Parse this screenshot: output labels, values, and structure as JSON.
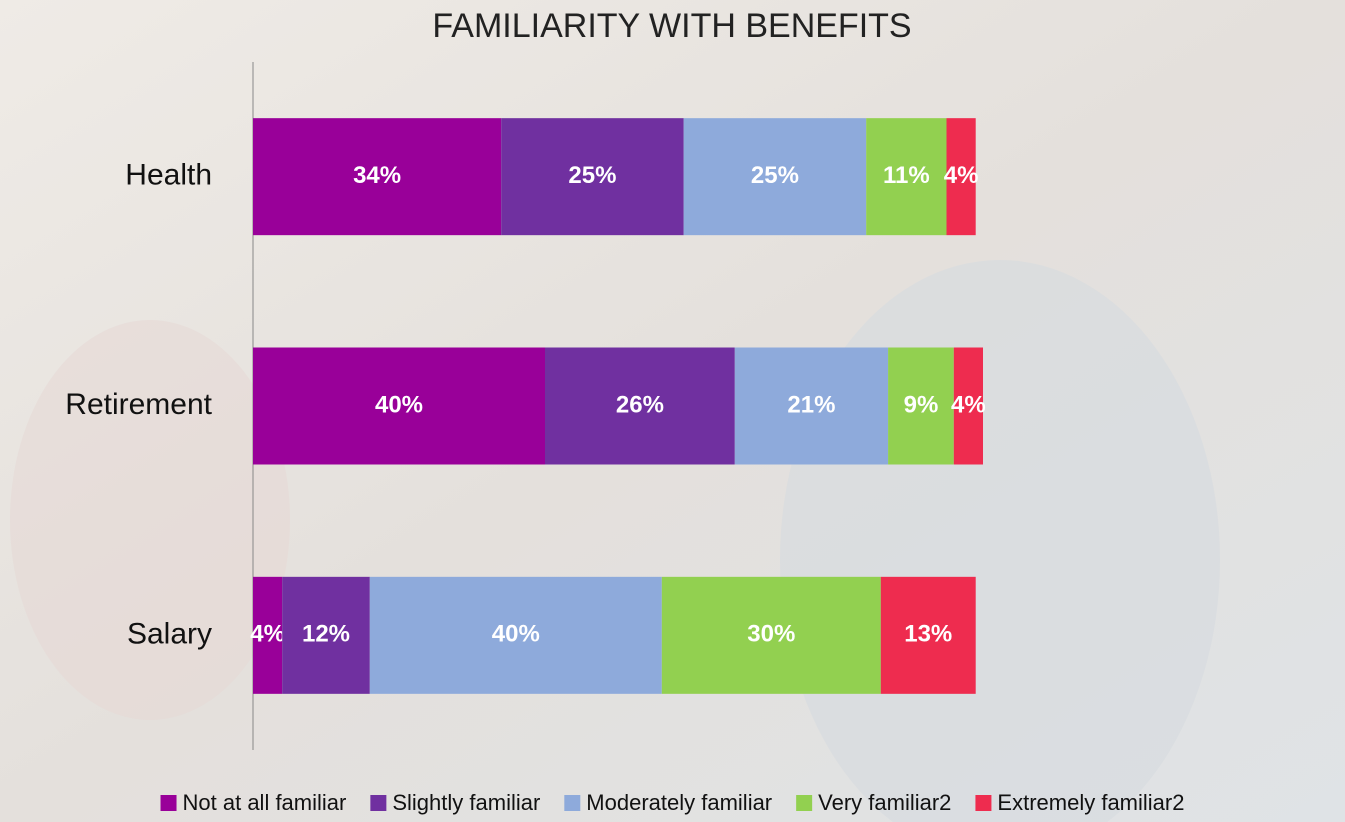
{
  "chart_data": {
    "type": "stacked-bar",
    "orientation": "horizontal",
    "title": "FAMILIARITY WITH BENEFITS",
    "categories": [
      "Health",
      "Retirement",
      "Salary"
    ],
    "series": [
      {
        "name": "Not at all familiar",
        "color": "#990099",
        "values": [
          34,
          40,
          4
        ],
        "value_labels": [
          "34%",
          "40%",
          "4%"
        ]
      },
      {
        "name": "Slightly familiar",
        "color": "#7030a0",
        "values": [
          25,
          26,
          12
        ],
        "value_labels": [
          "25%",
          "26%",
          "12%"
        ]
      },
      {
        "name": "Moderately familiar",
        "color": "#8eaadb",
        "values": [
          25,
          21,
          40
        ],
        "value_labels": [
          "25%",
          "21%",
          "40%"
        ]
      },
      {
        "name": "Very familiar2",
        "color": "#92d050",
        "values": [
          11,
          9,
          30
        ],
        "value_labels": [
          "11%",
          "9%",
          "30%"
        ]
      },
      {
        "name": "Extremely familiar2",
        "color": "#ee2c4f",
        "values": [
          4,
          4,
          13
        ],
        "value_labels": [
          "4%",
          "4%",
          "13%"
        ]
      }
    ],
    "legend": "bottom"
  }
}
